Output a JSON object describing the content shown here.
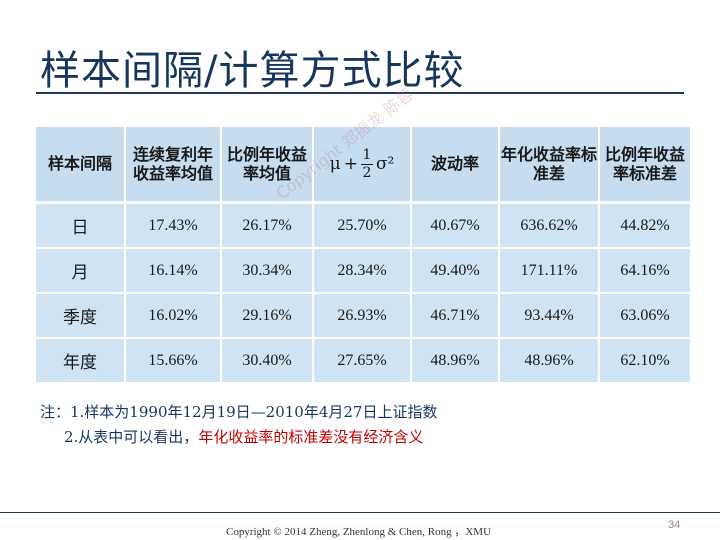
{
  "slide": {
    "title": "样本间隔/计算方式比较",
    "page_number": "34",
    "copyright": "Copyright © 2014 Zheng, Zhenlong & Chen, Rong ，XMU"
  },
  "table": {
    "headers": [
      "样本间隔",
      "连续复利年收益率均值",
      "比例年收益率均值",
      "μ + 1/2 σ²",
      "波动率",
      "年化收益率标准差",
      "比例年收益率标准差"
    ],
    "formula": {
      "mu": "μ",
      "plus": "+",
      "num": "1",
      "den": "2",
      "sigma": "σ²"
    },
    "rows": [
      {
        "label": "日",
        "values": [
          "17.43%",
          "26.17%",
          "25.70%",
          "40.67%",
          "636.62%",
          "44.82%"
        ]
      },
      {
        "label": "月",
        "values": [
          "16.14%",
          "30.34%",
          "28.34%",
          "49.40%",
          "171.11%",
          "64.16%"
        ]
      },
      {
        "label": "季度",
        "values": [
          "16.02%",
          "29.16%",
          "26.93%",
          "46.71%",
          "93.44%",
          "63.06%"
        ]
      },
      {
        "label": "年度",
        "values": [
          "15.66%",
          "30.40%",
          "27.65%",
          "48.96%",
          "48.96%",
          "62.10%"
        ]
      }
    ]
  },
  "watermark": "Copyright 郑振龙 陈蓉",
  "notes": {
    "line1": "注：1.样本为1990年12月19日—2010年4月27日上证指数",
    "line2_prefix": "2.从表中可以看出，",
    "line2_highlight": "年化收益率的标准差没有经济含义"
  },
  "colors": {
    "title": "#17365d",
    "table_bg": "#cfe3f3",
    "highlight": "#c00000"
  }
}
